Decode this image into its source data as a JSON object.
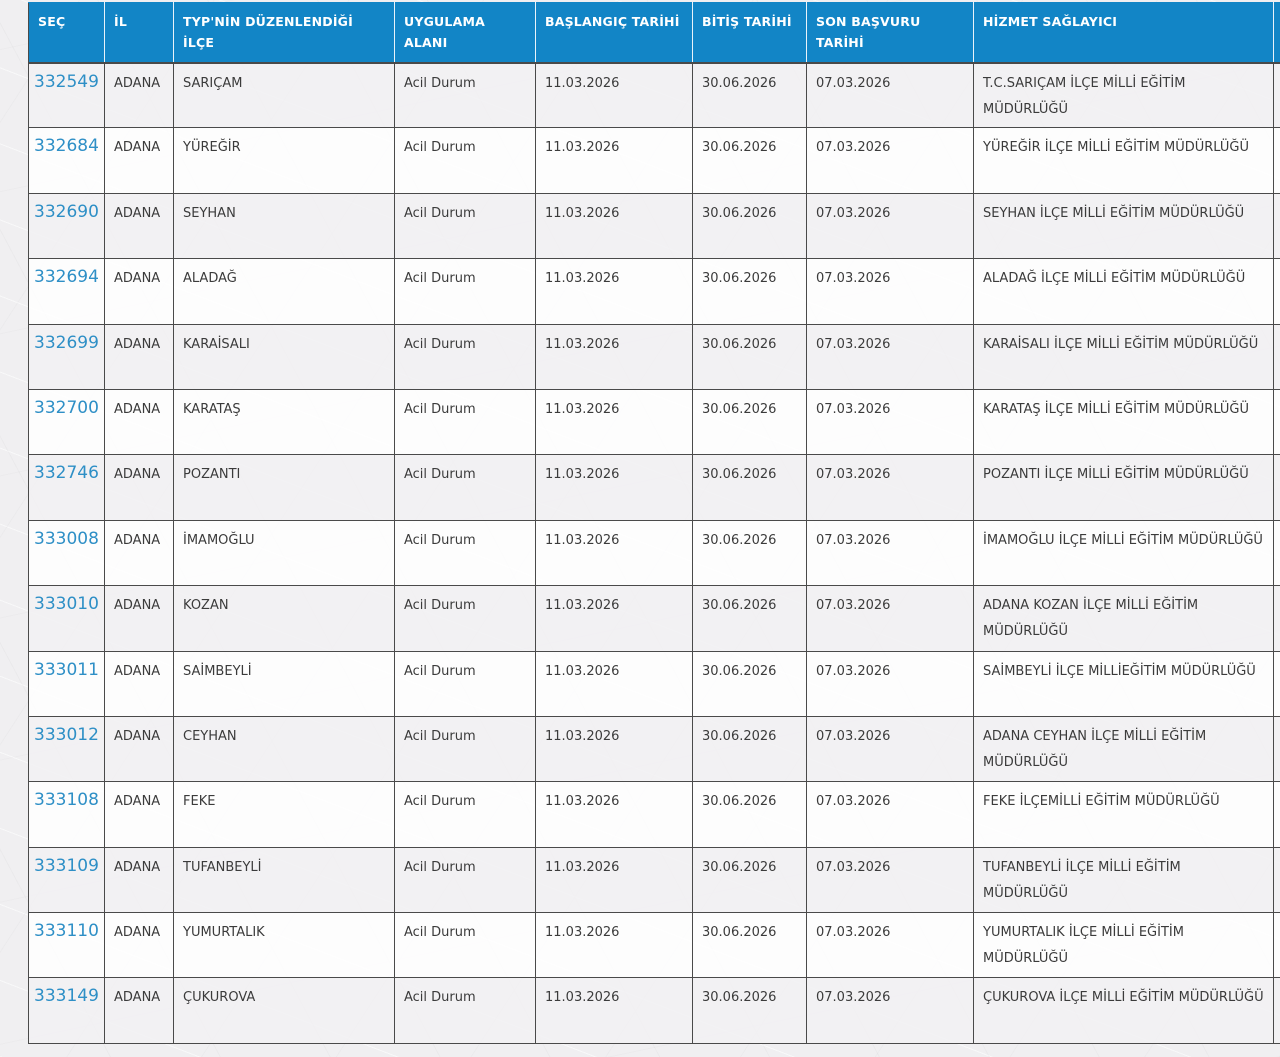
{
  "colors": {
    "header_bg": "#1285c6",
    "header_text": "#ffffff",
    "link_blue": "#2e8fc6",
    "cell_border": "#4a4a4a",
    "body_text": "#3b3b3b",
    "row_alt_gray": "#f3f2f3",
    "page_bg": "#f0eff1"
  },
  "table": {
    "columns": [
      {
        "label": "SEÇ"
      },
      {
        "label": "İL"
      },
      {
        "label": "TYP'NİN DÜZENLENDİĞİ İLÇE"
      },
      {
        "label": "UYGULAMA ALANI"
      },
      {
        "label": "BAŞLANGIÇ TARİHİ"
      },
      {
        "label": "BİTİŞ TARİHİ"
      },
      {
        "label": "SON BAŞVURU TARİHİ"
      },
      {
        "label": "HİZMET SAĞLAYICI"
      },
      {
        "label": ""
      }
    ],
    "rows": [
      {
        "id": "332549",
        "il": "ADANA",
        "ilce": "SARIÇAM",
        "alan": "Acil Durum",
        "start": "11.03.2026",
        "end": "30.06.2026",
        "deadline": "07.03.2026",
        "provider": "T.C.SARIÇAM İLÇE MİLLİ EĞİTİM MÜDÜRLÜĞÜ"
      },
      {
        "id": "332684",
        "il": "ADANA",
        "ilce": "YÜREĞİR",
        "alan": "Acil Durum",
        "start": "11.03.2026",
        "end": "30.06.2026",
        "deadline": "07.03.2026",
        "provider": "YÜREĞİR İLÇE MİLLİ EĞİTİM MÜDÜRLÜĞÜ"
      },
      {
        "id": "332690",
        "il": "ADANA",
        "ilce": "SEYHAN",
        "alan": "Acil Durum",
        "start": "11.03.2026",
        "end": "30.06.2026",
        "deadline": "07.03.2026",
        "provider": "SEYHAN İLÇE MİLLİ EĞİTİM MÜDÜRLÜĞÜ"
      },
      {
        "id": "332694",
        "il": "ADANA",
        "ilce": "ALADAĞ",
        "alan": "Acil Durum",
        "start": "11.03.2026",
        "end": "30.06.2026",
        "deadline": "07.03.2026",
        "provider": "ALADAĞ İLÇE MİLLİ EĞİTİM MÜDÜRLÜĞÜ"
      },
      {
        "id": "332699",
        "il": "ADANA",
        "ilce": "KARAİSALI",
        "alan": "Acil Durum",
        "start": "11.03.2026",
        "end": "30.06.2026",
        "deadline": "07.03.2026",
        "provider": "KARAİSALI İLÇE MİLLİ EĞİTİM MÜDÜRLÜĞÜ"
      },
      {
        "id": "332700",
        "il": "ADANA",
        "ilce": "KARATAŞ",
        "alan": "Acil Durum",
        "start": "11.03.2026",
        "end": "30.06.2026",
        "deadline": "07.03.2026",
        "provider": "KARATAŞ İLÇE MİLLİ EĞİTİM MÜDÜRLÜĞÜ"
      },
      {
        "id": "332746",
        "il": "ADANA",
        "ilce": "POZANTI",
        "alan": "Acil Durum",
        "start": "11.03.2026",
        "end": "30.06.2026",
        "deadline": "07.03.2026",
        "provider": "POZANTI İLÇE MİLLİ EĞİTİM MÜDÜRLÜĞÜ"
      },
      {
        "id": "333008",
        "il": "ADANA",
        "ilce": "İMAMOĞLU",
        "alan": "Acil Durum",
        "start": "11.03.2026",
        "end": "30.06.2026",
        "deadline": "07.03.2026",
        "provider": "İMAMOĞLU İLÇE MİLLİ EĞİTİM MÜDÜRLÜĞÜ"
      },
      {
        "id": "333010",
        "il": "ADANA",
        "ilce": "KOZAN",
        "alan": "Acil Durum",
        "start": "11.03.2026",
        "end": "30.06.2026",
        "deadline": "07.03.2026",
        "provider": "ADANA KOZAN İLÇE MİLLİ EĞİTİM MÜDÜRLÜĞÜ"
      },
      {
        "id": "333011",
        "il": "ADANA",
        "ilce": "SAİMBEYLİ",
        "alan": "Acil Durum",
        "start": "11.03.2026",
        "end": "30.06.2026",
        "deadline": "07.03.2026",
        "provider": "SAİMBEYLİ İLÇE MİLLİEĞİTİM MÜDÜRLÜĞÜ"
      },
      {
        "id": "333012",
        "il": "ADANA",
        "ilce": "CEYHAN",
        "alan": "Acil Durum",
        "start": "11.03.2026",
        "end": "30.06.2026",
        "deadline": "07.03.2026",
        "provider": "ADANA CEYHAN İLÇE MİLLİ EĞİTİM MÜDÜRLÜĞÜ"
      },
      {
        "id": "333108",
        "il": "ADANA",
        "ilce": "FEKE",
        "alan": "Acil Durum",
        "start": "11.03.2026",
        "end": "30.06.2026",
        "deadline": "07.03.2026",
        "provider": "FEKE İLÇEMİLLİ EĞİTİM MÜDÜRLÜĞÜ"
      },
      {
        "id": "333109",
        "il": "ADANA",
        "ilce": "TUFANBEYLİ",
        "alan": "Acil Durum",
        "start": "11.03.2026",
        "end": "30.06.2026",
        "deadline": "07.03.2026",
        "provider": "TUFANBEYLİ İLÇE MİLLİ EĞİTİM MÜDÜRLÜĞÜ"
      },
      {
        "id": "333110",
        "il": "ADANA",
        "ilce": "YUMURTALIK",
        "alan": "Acil Durum",
        "start": "11.03.2026",
        "end": "30.06.2026",
        "deadline": "07.03.2026",
        "provider": "YUMURTALIK İLÇE MİLLİ EĞİTİM MÜDÜRLÜĞÜ"
      },
      {
        "id": "333149",
        "il": "ADANA",
        "ilce": "ÇUKUROVA",
        "alan": "Acil Durum",
        "start": "11.03.2026",
        "end": "30.06.2026",
        "deadline": "07.03.2026",
        "provider": "ÇUKUROVA İLÇE MİLLİ EĞİTİM MÜDÜRLÜĞÜ"
      }
    ]
  }
}
